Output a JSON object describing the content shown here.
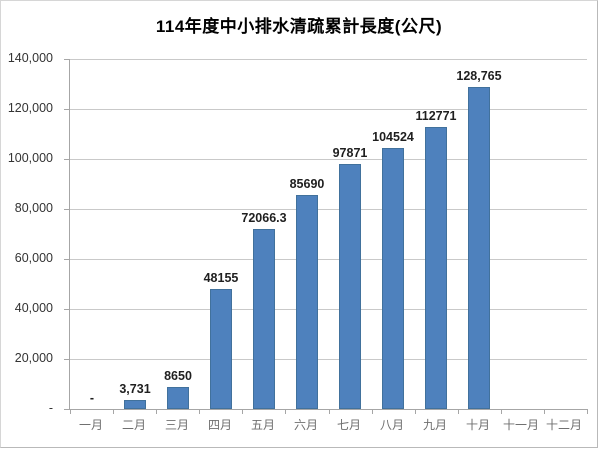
{
  "window": {
    "background": "#ffffff",
    "border_color": "#c9c9c9"
  },
  "chart_data": {
    "type": "bar",
    "title": "114年度中小排水清疏累計長度(公尺)",
    "xlabel": "",
    "ylabel": "",
    "categories": [
      "一月",
      "二月",
      "三月",
      "四月",
      "五月",
      "六月",
      "七月",
      "八月",
      "九月",
      "十月",
      "十一月",
      "十二月"
    ],
    "values": [
      0,
      3731,
      8650,
      48155,
      72066.3,
      85690,
      97871,
      104524,
      112771,
      128765,
      null,
      null
    ],
    "data_labels": [
      "-",
      "3,731",
      "8650",
      "48155",
      "72066.3",
      "85690",
      "97871",
      "104524",
      "112771",
      "128,765",
      "",
      ""
    ],
    "y_tick_labels": [
      "140,000",
      "120,000",
      "100,000",
      "80,000",
      "60,000",
      "40,000",
      "20,000",
      "-"
    ],
    "ylim": [
      0,
      140000
    ],
    "y_step": 20000,
    "grid": "horizontal",
    "legend": "none",
    "bar_color": "#4e81bd",
    "bar_border_color": "#41719c",
    "gridline_color": "#c9c9c9",
    "axis_color": "#a6a6a6"
  }
}
